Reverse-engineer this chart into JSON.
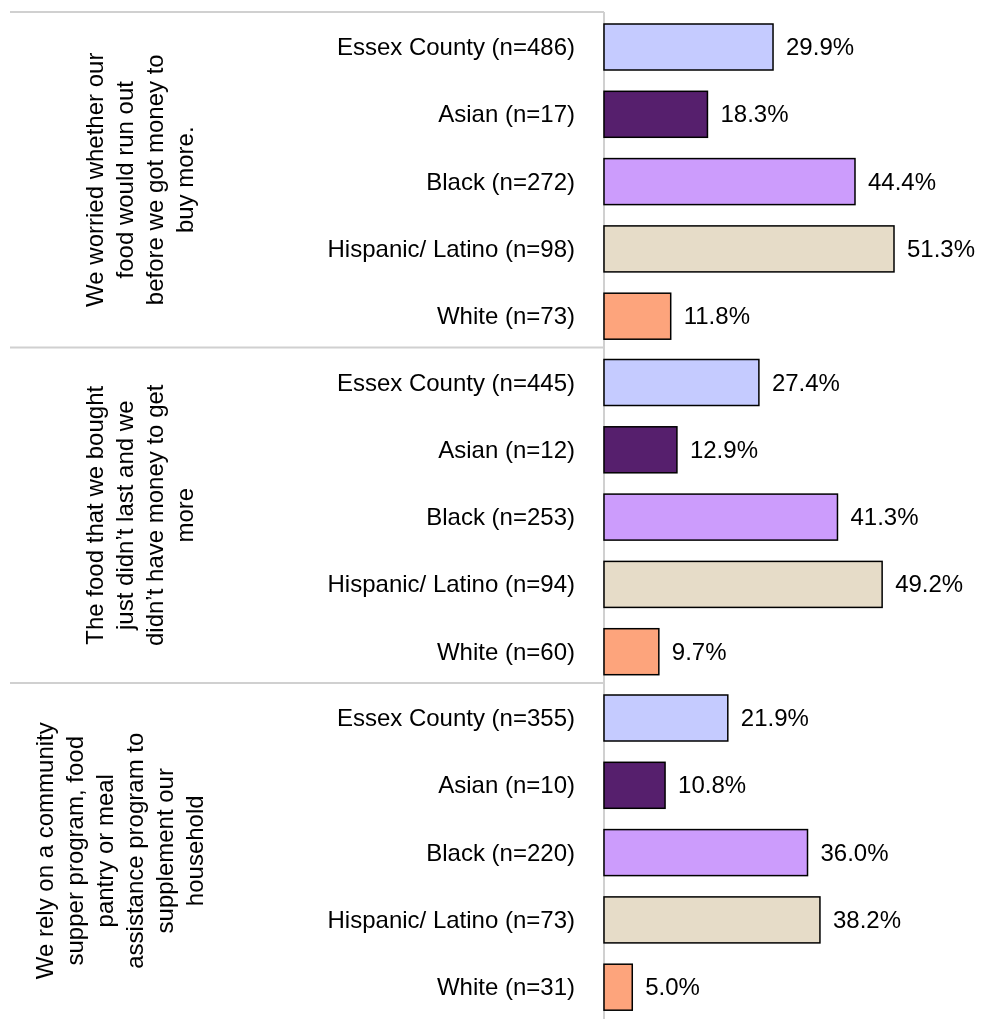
{
  "chart_data": [
    {
      "type": "bar",
      "orientation": "horizontal",
      "ylabel": "We worried whether our food would run out before we got money to buy more.",
      "categories": [
        "Essex County (n=486)",
        "Asian (n=17)",
        "Black (n=272)",
        "Hispanic/ Latino (n=98)",
        "White (n=73)"
      ],
      "values": [
        29.9,
        18.3,
        44.4,
        51.3,
        11.8
      ],
      "colors": [
        "#c5cbff",
        "#561f6d",
        "#cc9cfc",
        "#e6dcc8",
        "#fda47c"
      ],
      "value_labels": [
        "29.9%",
        "18.3%",
        "44.4%",
        "51.3%",
        "11.8%"
      ]
    },
    {
      "type": "bar",
      "orientation": "horizontal",
      "ylabel": "The food that we bought just didn’t last and we didn’t have money to get more",
      "categories": [
        "Essex County (n=445)",
        "Asian (n=12)",
        "Black (n=253)",
        "Hispanic/ Latino (n=94)",
        "White (n=60)"
      ],
      "values": [
        27.4,
        12.9,
        41.3,
        49.2,
        9.7
      ],
      "colors": [
        "#c5cbff",
        "#561f6d",
        "#cc9cfc",
        "#e6dcc8",
        "#fda47c"
      ],
      "value_labels": [
        "27.4%",
        "12.9%",
        "41.3%",
        "49.2%",
        "9.7%"
      ]
    },
    {
      "type": "bar",
      "orientation": "horizontal",
      "ylabel": "We rely on a community supper program, food pantry or meal assistance program to supplement our household",
      "categories": [
        "Essex County (n=355)",
        "Asian (n=10)",
        "Black (n=220)",
        "Hispanic/ Latino (n=73)",
        "White (n=31)"
      ],
      "values": [
        21.9,
        10.8,
        36.0,
        38.2,
        5.0
      ],
      "colors": [
        "#c5cbff",
        "#561f6d",
        "#cc9cfc",
        "#e6dcc8",
        "#fda47c"
      ],
      "value_labels": [
        "21.9%",
        "10.8%",
        "36.0%",
        "38.2%",
        "5.0%"
      ]
    }
  ]
}
